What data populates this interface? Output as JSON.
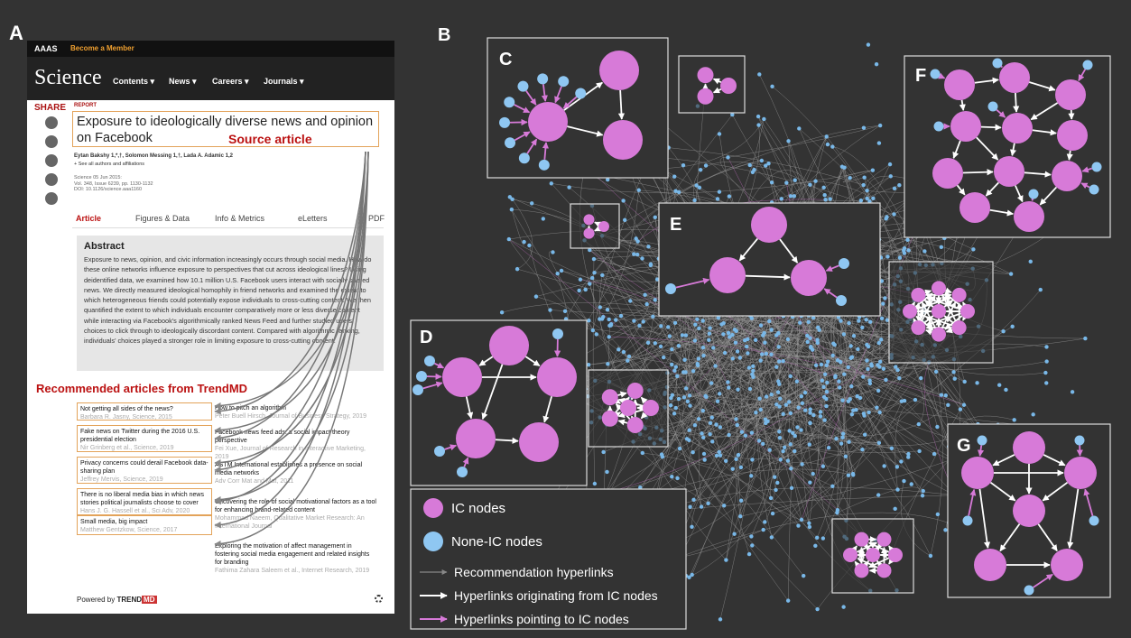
{
  "panels": {
    "a": "A",
    "b": "B",
    "c": "C",
    "d": "D",
    "e": "E",
    "f": "F",
    "g": "G"
  },
  "article": {
    "brand": "AAAS",
    "member": "Become a Member",
    "logo": "Science",
    "nav": [
      "Contents ▾",
      "News ▾",
      "Careers ▾",
      "Journals ▾"
    ],
    "share": "SHARE",
    "report": "REPORT",
    "title": "Exposure to ideologically diverse news and opinion on Facebook",
    "source_label": "Source article",
    "authors": "Eytan Bakshy 1,*,†, Solomon Messing 1,†, Lada A. Adamic 1,2",
    "see_all": "+ See all authors and affiliations",
    "meta": [
      "Science 05 Jun 2015:",
      "Vol. 348, Issue 6239, pp. 1130-1132",
      "DOI: 10.1126/science.aaa1160"
    ],
    "tabs": [
      "Article",
      "Figures & Data",
      "Info & Metrics",
      "eLetters",
      "PDF"
    ],
    "abstract_heading": "Abstract",
    "abstract": "Exposure to news, opinion, and civic information increasingly occurs through social media. How do these online networks influence exposure to perspectives that cut across ideological lines? Using deidentified data, we examined how 10.1 million U.S. Facebook users interact with socially shared news. We directly measured ideological homophily in friend networks and examined the extent to which heterogeneous friends could potentially expose individuals to cross-cutting content. We then quantified the extent to which individuals encounter comparatively more or less diverse content while interacting via Facebook's algorithmically ranked News Feed and further studied users' choices to click through to ideologically discordant content. Compared with algorithmic ranking, individuals' choices played a stronger role in limiting exposure to cross-cutting content.",
    "recommended_heading": "Recommended articles from TrendMD",
    "left_items": [
      {
        "title": "Not getting all sides of the news?",
        "byline": "Barbara R. Jasny, Science, 2015"
      },
      {
        "title": "Fake news on Twitter during the 2016 U.S. presidential election",
        "byline": "Nir Grinberg et al., Science, 2019"
      },
      {
        "title": "Privacy concerns could derail Facebook data-sharing plan",
        "byline": "Jeffrey Mervis, Science, 2019"
      },
      {
        "title": "There is no liberal media bias in which news stories political journalists choose to cover",
        "byline": "Hans J. G. Hassell et al., Sci Adv, 2020"
      },
      {
        "title": "Small media, big impact",
        "byline": "Matthew Gentzkow, Science, 2017"
      }
    ],
    "right_items": [
      {
        "title": "How to pitch an algorithm",
        "byline": "Peter Buell Hirsch, Journal of Business Strategy, 2019"
      },
      {
        "title": "Facebook news feed ads: a social impact theory perspective",
        "byline": "Fei Xue, Journal of Research in Interactive Marketing, 2019"
      },
      {
        "title": "ASTM International establishes a presence on social media networks",
        "byline": "Adv Corr Mat and Mat, 2011"
      },
      {
        "title": "Uncovering the role of social motivational factors as a tool for enhancing brand-related content",
        "byline": "Mohammad Naeem, Qualitative Market Research: An International Journal"
      },
      {
        "title": "Exploring the motivation of affect management in fostering social media engagement and related insights for branding",
        "byline": "Fathima Zahara Saleem et al., Internet Research, 2019"
      }
    ],
    "powered_by": "Powered by",
    "trend": "TREND",
    "md": "MD"
  },
  "legend": [
    "IC nodes",
    "None-IC nodes",
    "Recommendation hyperlinks",
    "Hyperlinks originating from IC nodes",
    "Hyperlinks pointing to IC nodes"
  ]
}
